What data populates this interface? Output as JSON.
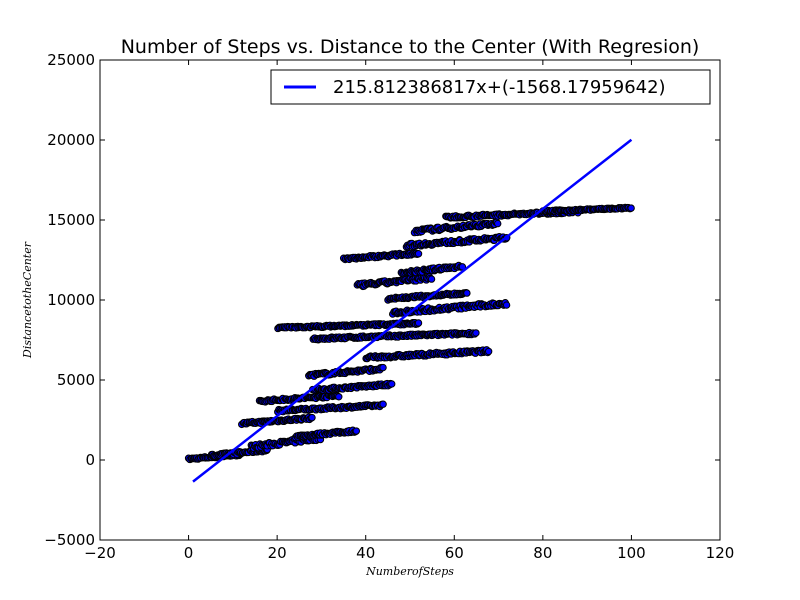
{
  "chart_data": {
    "type": "scatter",
    "title": "Number of Steps vs. Distance to the Center (With Regresion)",
    "xlabel": "NumberofSteps",
    "ylabel": "DistancetotheCenter",
    "xlim": [
      -20,
      120
    ],
    "ylim": [
      -5000,
      25000
    ],
    "xticks": [
      -20,
      0,
      20,
      40,
      60,
      80,
      100,
      120
    ],
    "yticks": [
      -5000,
      0,
      5000,
      10000,
      15000,
      20000,
      25000
    ],
    "xtick_labels": [
      "−20",
      "0",
      "20",
      "40",
      "60",
      "80",
      "100",
      "120"
    ],
    "ytick_labels": [
      "−5000",
      "0",
      "5000",
      "10000",
      "15000",
      "20000",
      "25000"
    ],
    "grid": false,
    "legend_position": "top-right",
    "colors": {
      "regression_line": "#0000ff",
      "marker_face": "#0000ff",
      "marker_edge": "#000000"
    },
    "regression": {
      "label": "215.812386817x+(-1568.17959642)",
      "slope": 215.812386817,
      "intercept": -1568.17959642,
      "x_range": [
        1,
        100
      ]
    },
    "scatter_bands": [
      {
        "x0": 0,
        "x1": 12,
        "y0": 0,
        "y1": 400
      },
      {
        "x0": 5,
        "x1": 18,
        "y0": 200,
        "y1": 700
      },
      {
        "x0": 14,
        "x1": 30,
        "y0": 700,
        "y1": 1500
      },
      {
        "x0": 24,
        "x1": 38,
        "y0": 1400,
        "y1": 1900
      },
      {
        "x0": 12,
        "x1": 28,
        "y0": 2200,
        "y1": 2700
      },
      {
        "x0": 20,
        "x1": 44,
        "y0": 3000,
        "y1": 3500
      },
      {
        "x0": 16,
        "x1": 34,
        "y0": 3600,
        "y1": 4100
      },
      {
        "x0": 28,
        "x1": 46,
        "y0": 4300,
        "y1": 4800
      },
      {
        "x0": 27,
        "x1": 44,
        "y0": 5200,
        "y1": 5800
      },
      {
        "x0": 40,
        "x1": 68,
        "y0": 6300,
        "y1": 6900
      },
      {
        "x0": 28,
        "x1": 65,
        "y0": 7500,
        "y1": 8000
      },
      {
        "x0": 20,
        "x1": 52,
        "y0": 8200,
        "y1": 8600
      },
      {
        "x0": 46,
        "x1": 72,
        "y0": 9100,
        "y1": 9900
      },
      {
        "x0": 45,
        "x1": 63,
        "y0": 10000,
        "y1": 10500
      },
      {
        "x0": 38,
        "x1": 55,
        "y0": 10800,
        "y1": 11500
      },
      {
        "x0": 48,
        "x1": 62,
        "y0": 11600,
        "y1": 12200
      },
      {
        "x0": 35,
        "x1": 52,
        "y0": 12500,
        "y1": 13000
      },
      {
        "x0": 49,
        "x1": 72,
        "y0": 13300,
        "y1": 14000
      },
      {
        "x0": 51,
        "x1": 70,
        "y0": 14200,
        "y1": 14900
      },
      {
        "x0": 58,
        "x1": 88,
        "y0": 15100,
        "y1": 15600
      },
      {
        "x0": 80,
        "x1": 100,
        "y0": 15500,
        "y1": 15800
      }
    ]
  }
}
